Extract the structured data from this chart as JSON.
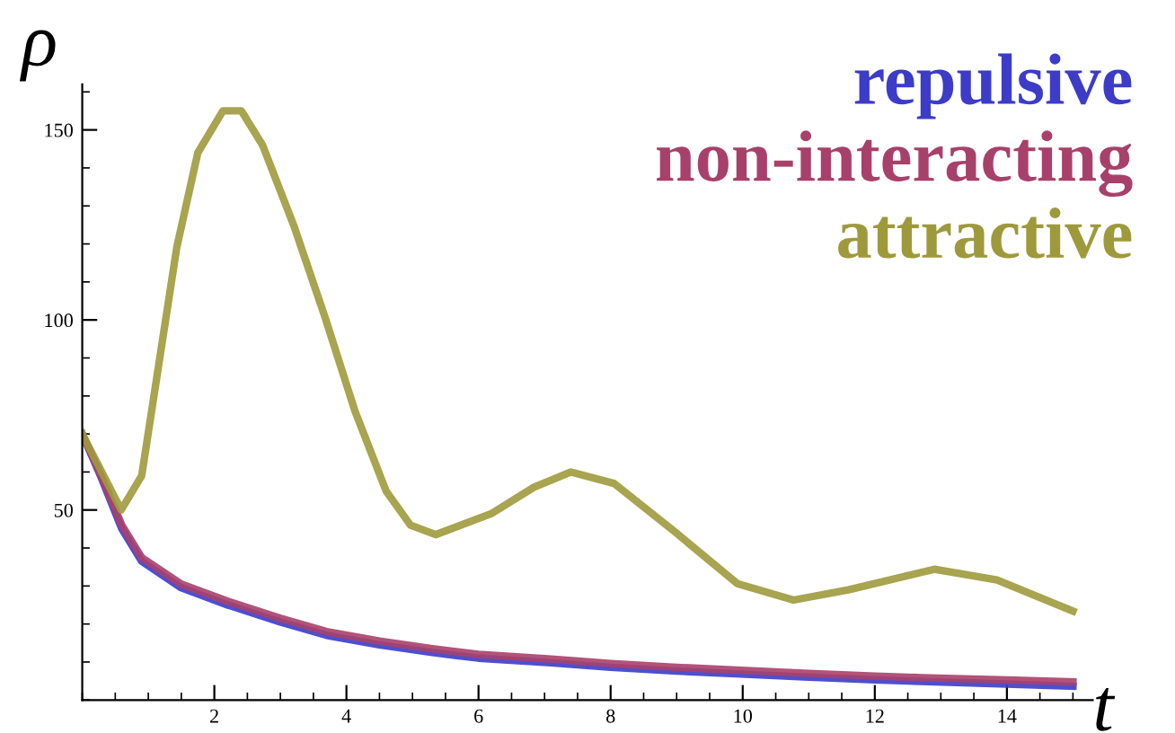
{
  "chart_data": {
    "type": "line",
    "xlabel": "t",
    "ylabel": "ρ",
    "xlim": [
      0,
      15.3
    ],
    "ylim": [
      0,
      162
    ],
    "xticks": [
      2,
      4,
      6,
      8,
      10,
      12,
      14
    ],
    "yticks": [
      50,
      100,
      150
    ],
    "grid": false,
    "legend": "top right",
    "marker": "none",
    "line_style": "solid",
    "series": [
      {
        "name": "repulsive",
        "color": "#3c3cc8",
        "x": [
          0,
          0.3,
          0.6,
          0.9,
          1.5,
          2.2,
          3.0,
          3.7,
          4.5,
          5.3,
          6.0,
          7.1,
          8.0,
          9.0,
          9.9,
          11.0,
          12.0,
          12.7,
          14.0,
          15.0
        ],
        "values": [
          70,
          58,
          45,
          36.5,
          29.5,
          25,
          20.5,
          17,
          14.5,
          12.5,
          11,
          9.8,
          8.6,
          7.6,
          6.9,
          6,
          5.3,
          4.9,
          4.2,
          3.6
        ]
      },
      {
        "name": "non-interacting",
        "color": "#a8406c",
        "x": [
          0,
          0.3,
          0.6,
          0.9,
          1.5,
          2.2,
          3.0,
          3.7,
          4.5,
          5.3,
          6.0,
          7.1,
          8.0,
          9.0,
          9.9,
          11.0,
          12.0,
          12.7,
          14.0,
          15.0
        ],
        "values": [
          70,
          58.5,
          46,
          37.5,
          30.5,
          26,
          21.5,
          18,
          15.5,
          13.5,
          12,
          10.8,
          9.6,
          8.6,
          7.9,
          7,
          6.3,
          5.9,
          5.3,
          4.8
        ]
      },
      {
        "name": "attractive",
        "color": "#9e9a3c",
        "x": [
          0,
          0.59,
          0.9,
          1.43,
          1.75,
          2.13,
          2.41,
          2.73,
          3.2,
          3.67,
          4.13,
          4.6,
          4.97,
          5.35,
          6.19,
          6.84,
          7.4,
          8.05,
          8.99,
          9.92,
          10.77,
          11.6,
          12.9,
          13.85,
          15.0
        ],
        "values": [
          70,
          50,
          59,
          119,
          144,
          155,
          155,
          146,
          125,
          101,
          76,
          55,
          46,
          43.5,
          49,
          56,
          60,
          57,
          44,
          30.6,
          26.3,
          29,
          34.4,
          31.6,
          23.4
        ]
      }
    ]
  }
}
